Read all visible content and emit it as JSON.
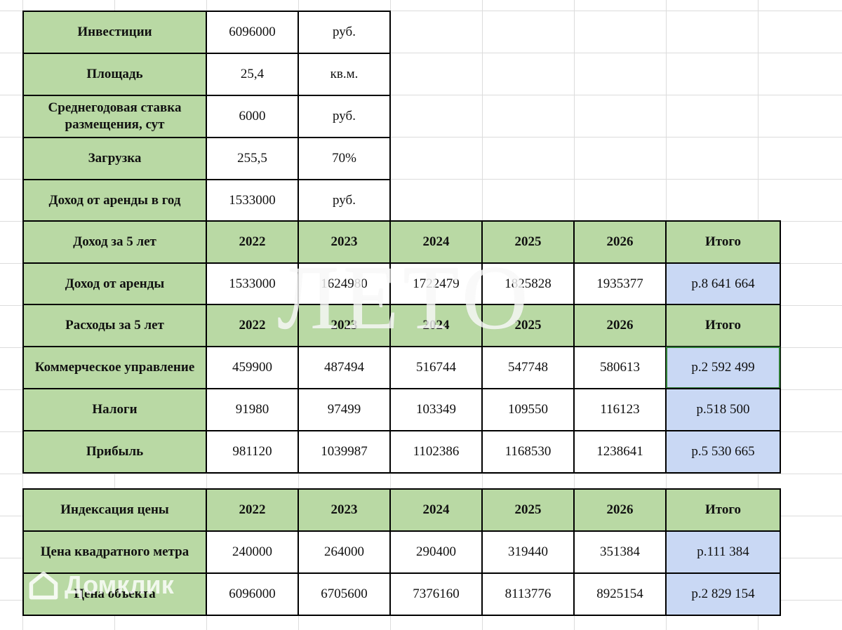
{
  "info_table": [
    {
      "label": "Инвестиции",
      "value": "6096000",
      "unit": "руб."
    },
    {
      "label": "Площадь",
      "value": "25,4",
      "unit": "кв.м."
    },
    {
      "label": "Среднегодовая ставка размещения, сут",
      "value": "6000",
      "unit": "руб."
    },
    {
      "label": "Загрузка",
      "value": "255,5",
      "unit": "70%"
    },
    {
      "label": "Доход от аренды в год",
      "value": "1533000",
      "unit": "руб."
    }
  ],
  "income": {
    "header": [
      "Доход за 5 лет",
      "2022",
      "2023",
      "2024",
      "2025",
      "2026",
      "Итого"
    ],
    "row": [
      "Доход от аренды",
      "1533000",
      "1624980",
      "1722479",
      "1825828",
      "1935377",
      "р.8 641 664"
    ]
  },
  "expenses": {
    "header": [
      "Расходы за 5 лет",
      "2022",
      "2023",
      "2024",
      "2025",
      "2026",
      "Итого"
    ],
    "rows": [
      [
        "Коммерческое управление",
        "459900",
        "487494",
        "516744",
        "547748",
        "580613",
        "р.2 592 499"
      ],
      [
        "Налоги",
        "91980",
        "97499",
        "103349",
        "109550",
        "116123",
        "р.518 500"
      ],
      [
        "Прибыль",
        "981120",
        "1039987",
        "1102386",
        "1168530",
        "1238641",
        "р.5 530 665"
      ]
    ]
  },
  "indexation": {
    "header": [
      "Индексация цены",
      "2022",
      "2023",
      "2024",
      "2025",
      "2026",
      "Итого"
    ],
    "rows": [
      [
        "Цена квадратного метра",
        "240000",
        "264000",
        "290400",
        "319440",
        "351384",
        "р.111 384"
      ],
      [
        "Цена объекта",
        "6096000",
        "6705600",
        "7376160",
        "8113776",
        "8925154",
        "р.2 829 154"
      ]
    ]
  },
  "watermark_text": "ЛЕТО",
  "watermark2_text": "Домклик"
}
